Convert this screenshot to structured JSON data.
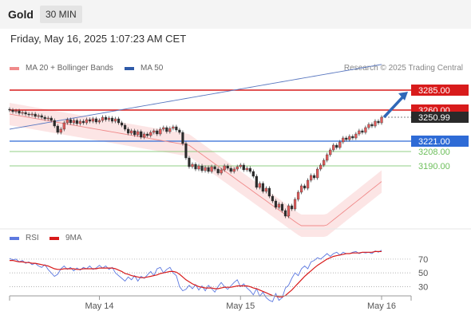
{
  "header": {
    "instrument": "Gold",
    "timeframe": "30 MIN"
  },
  "timestamp": "Friday, May 16, 2025 1:07:23 AM CET",
  "legend": {
    "item1": "MA 20 + Bollinger Bands",
    "item2": "MA 50"
  },
  "copyright": "Research © 2025 Trading Central",
  "rsi_legend": {
    "item1": "RSI",
    "item2": "9MA"
  },
  "colors": {
    "candle_up": "#e45a5a",
    "candle_down": "#2a2a2a",
    "resistance": "#d81b1b",
    "pivot": "#2e6bd6",
    "support": "#6dbf5b",
    "ma20": "#f08a8a",
    "ma50": "#5a78c0",
    "bollinger": "#fbe0e0",
    "arrow": "#2f68b8",
    "rsi": "#5d79e0",
    "rsi_ma": "#d81b1b"
  },
  "chart_data": [
    {
      "type": "candlestick",
      "ylim": [
        3115,
        3300
      ],
      "x_ticks": [
        "May 14",
        "May 15",
        "May 16"
      ],
      "levels": [
        {
          "label": "3285.00",
          "value": 3285,
          "kind": "resistance"
        },
        {
          "label": "3260.00",
          "value": 3260,
          "kind": "resistance"
        },
        {
          "label": "3250.99",
          "value": 3251,
          "kind": "last_price"
        },
        {
          "label": "3221.00",
          "value": 3221,
          "kind": "pivot"
        },
        {
          "label": "3208.00",
          "value": 3208,
          "kind": "support"
        },
        {
          "label": "3190.00",
          "value": 3190,
          "kind": "support"
        }
      ],
      "projection_target": 3285,
      "closes": [
        3260,
        3258,
        3259,
        3256,
        3257,
        3255,
        3254,
        3255,
        3252,
        3253,
        3251,
        3249,
        3250,
        3247,
        3240,
        3232,
        3236,
        3244,
        3248,
        3244,
        3247,
        3243,
        3246,
        3244,
        3248,
        3246,
        3249,
        3245,
        3247,
        3251,
        3248,
        3250,
        3246,
        3249,
        3244,
        3241,
        3236,
        3231,
        3234,
        3229,
        3233,
        3226,
        3230,
        3228,
        3232,
        3234,
        3230,
        3236,
        3238,
        3233,
        3237,
        3239,
        3235,
        3232,
        3218,
        3200,
        3189,
        3192,
        3186,
        3190,
        3184,
        3188,
        3183,
        3189,
        3186,
        3181,
        3185,
        3190,
        3187,
        3183,
        3186,
        3189,
        3191,
        3185,
        3187,
        3183,
        3177,
        3163,
        3168,
        3158,
        3162,
        3152,
        3146,
        3138,
        3142,
        3134,
        3127,
        3140,
        3136,
        3148,
        3157,
        3165,
        3162,
        3172,
        3178,
        3175,
        3186,
        3191,
        3197,
        3204,
        3210,
        3216,
        3213,
        3220,
        3225,
        3223,
        3227,
        3225,
        3230,
        3234,
        3232,
        3238,
        3242,
        3240,
        3246,
        3244,
        3251
      ],
      "ma20": [
        3255,
        3254.3,
        3253.6,
        3252.9,
        3252.2,
        3251.5,
        3250.8,
        3250.1,
        3249.4,
        3248.7,
        3248,
        3247.3,
        3246.6,
        3245.9,
        3245.2,
        3244.5,
        3243.8,
        3243.1,
        3242.4,
        3241.7,
        3241,
        3240.3,
        3239.6,
        3238.9,
        3238.2,
        3237.5,
        3236.8,
        3236.1,
        3235.4,
        3234.7,
        3234,
        3233.3,
        3232.6,
        3231.9,
        3231.2,
        3230.5,
        3229.8,
        3229.1,
        3228.4,
        3227.7,
        3227,
        3226.3,
        3225.6,
        3224.9,
        3224.2,
        3223.5,
        3222.8,
        3222.1,
        3221.4,
        3220.7,
        3220,
        3219.3,
        3218.6,
        3217.9,
        3217.2,
        3216.5,
        3215.8,
        3212.9,
        3210,
        3207.1,
        3204.2,
        3201.3,
        3198.4,
        3195.5,
        3192.6,
        3189.7,
        3186.8,
        3183.9,
        3181,
        3178.1,
        3175.2,
        3172.3,
        3169.4,
        3166.5,
        3163.6,
        3160.7,
        3157.8,
        3154.9,
        3152,
        3149.1,
        3146.2,
        3143.3,
        3140.4,
        3137.5,
        3134.6,
        3131.7,
        3128.8,
        3125.9,
        3123,
        3120.1,
        3117.2,
        3115,
        3115,
        3115,
        3115,
        3115,
        3115,
        3115,
        3115,
        3116,
        3119.2,
        3122.4,
        3125.6,
        3128.8,
        3132,
        3135.2,
        3138.4,
        3141.6,
        3144.8,
        3148,
        3151.2,
        3154.4,
        3157.6,
        3160.8,
        3164,
        3167.2,
        3170.4
      ],
      "ma50": [
        3236,
        3236.7,
        3237.4,
        3238.1,
        3238.8,
        3239.5,
        3240.2,
        3240.9,
        3241.6,
        3242.3,
        3243,
        3243.7,
        3244.4,
        3245.1,
        3245.8,
        3246.5,
        3247.2,
        3247.9,
        3248.6,
        3249.3,
        3250,
        3250.7,
        3251.4,
        3252.1,
        3252.8,
        3253.5,
        3254.2,
        3254.9,
        3255.6,
        3256.3,
        3257,
        3257.7,
        3258.4,
        3259.1,
        3259.8,
        3260.5,
        3261.2,
        3261.9,
        3262.6,
        3263.3,
        3264,
        3264.7,
        3265.4,
        3266.1,
        3266.8,
        3267.5,
        3268.2,
        3268.9,
        3269.6,
        3270.3,
        3271,
        3271.7,
        3272.4,
        3273.1,
        3273.8,
        3274.5,
        3275.2,
        3275.9,
        3276.6,
        3277.3,
        3278,
        3278.7,
        3279.4,
        3280.1,
        3280.8,
        3281.5,
        3282.2,
        3282.9,
        3283.6,
        3284.3,
        3285,
        3285.7,
        3286.4,
        3287.1,
        3287.8,
        3288.5,
        3289.2,
        3289.9,
        3290.6,
        3291.3,
        3292,
        3292.7,
        3293.4,
        3294.1,
        3294.8,
        3295.5,
        3296.2,
        3296.9,
        3297.6,
        3298.3,
        3299,
        3299.7,
        3300.4,
        3301.1,
        3301.8,
        3302.5,
        3303.2,
        3303.9,
        3304.6,
        3305.3,
        3306,
        3306.7,
        3307.4,
        3308.1,
        3308.8,
        3309.5,
        3310.2,
        3310.9,
        3311.6,
        3312.3,
        3313,
        3313.7,
        3314.4,
        3315.1,
        3315.8,
        3316.5,
        3317.2
      ]
    },
    {
      "type": "line",
      "title": "RSI",
      "ylim": [
        20,
        85
      ],
      "y_ticks": [
        70,
        50,
        30
      ],
      "series": [
        {
          "name": "RSI",
          "values": [
            71,
            69,
            70,
            66,
            68,
            64,
            66,
            62,
            64,
            60,
            58,
            62,
            55,
            50,
            45,
            48,
            56,
            60,
            55,
            58,
            53,
            57,
            54,
            58,
            56,
            60,
            55,
            57,
            61,
            57,
            60,
            55,
            58,
            50,
            46,
            42,
            38,
            44,
            40,
            46,
            38,
            45,
            42,
            47,
            52,
            46,
            56,
            58,
            50,
            55,
            58,
            50,
            46,
            30,
            24,
            26,
            32,
            27,
            33,
            25,
            31,
            24,
            32,
            27,
            22,
            30,
            36,
            30,
            26,
            31,
            36,
            40,
            30,
            34,
            28,
            24,
            18,
            27,
            16,
            22,
            14,
            10,
            8,
            20,
            10,
            14,
            28,
            32,
            42,
            50,
            46,
            56,
            60,
            56,
            66,
            68,
            72,
            70,
            74,
            78,
            74,
            78,
            80,
            76,
            80,
            78,
            78,
            80,
            81,
            78,
            80,
            79,
            80,
            78,
            82,
            80,
            83
          ]
        },
        {
          "name": "9MA",
          "values": [
            68,
            68,
            67,
            66,
            66,
            65,
            65,
            64,
            64,
            63,
            62,
            61,
            60,
            58,
            56,
            55,
            55,
            56,
            56,
            56,
            56,
            55,
            55,
            56,
            56,
            56,
            56,
            56,
            57,
            57,
            57,
            57,
            57,
            56,
            54,
            52,
            49,
            48,
            46,
            45,
            44,
            43,
            43,
            44,
            45,
            46,
            47,
            49,
            50,
            51,
            52,
            52,
            51,
            48,
            44,
            40,
            37,
            34,
            32,
            30,
            29,
            28,
            28,
            28,
            27,
            27,
            28,
            29,
            29,
            29,
            30,
            31,
            31,
            31,
            31,
            30,
            28,
            27,
            25,
            23,
            21,
            19,
            17,
            16,
            15,
            15,
            17,
            21,
            25,
            30,
            35,
            40,
            45,
            49,
            53,
            57,
            61,
            64,
            67,
            70,
            72,
            74,
            75,
            76,
            77,
            78,
            78,
            79,
            79,
            79,
            80,
            80,
            80,
            80,
            81,
            81,
            81
          ]
        }
      ]
    }
  ]
}
